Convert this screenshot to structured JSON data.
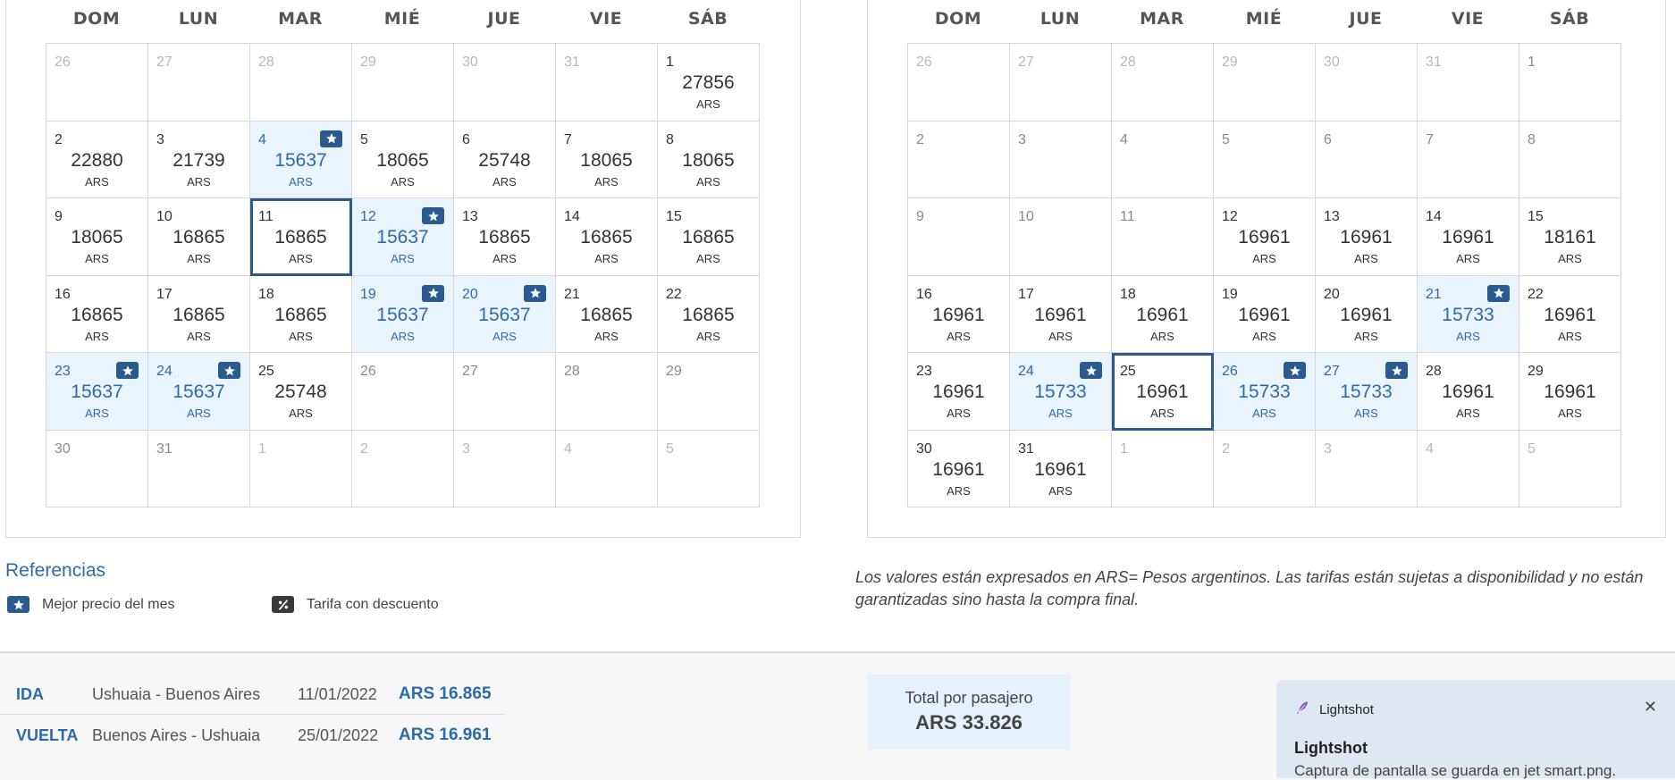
{
  "weekdays": [
    "DOM",
    "LUN",
    "MAR",
    "MIÉ",
    "JUE",
    "VIE",
    "SÁB"
  ],
  "calendars": [
    {
      "id": "ida",
      "days": [
        {
          "day": "26",
          "other": true
        },
        {
          "day": "27",
          "other": true
        },
        {
          "day": "28",
          "other": true
        },
        {
          "day": "29",
          "other": true
        },
        {
          "day": "30",
          "other": true
        },
        {
          "day": "31",
          "other": true
        },
        {
          "day": "1",
          "price": "27856",
          "cur": "ARS"
        },
        {
          "day": "2",
          "price": "22880",
          "cur": "ARS"
        },
        {
          "day": "3",
          "price": "21739",
          "cur": "ARS"
        },
        {
          "day": "4",
          "price": "15637",
          "cur": "ARS",
          "best": true
        },
        {
          "day": "5",
          "price": "18065",
          "cur": "ARS"
        },
        {
          "day": "6",
          "price": "25748",
          "cur": "ARS"
        },
        {
          "day": "7",
          "price": "18065",
          "cur": "ARS"
        },
        {
          "day": "8",
          "price": "18065",
          "cur": "ARS"
        },
        {
          "day": "9",
          "price": "18065",
          "cur": "ARS"
        },
        {
          "day": "10",
          "price": "16865",
          "cur": "ARS"
        },
        {
          "day": "11",
          "price": "16865",
          "cur": "ARS",
          "selected": true
        },
        {
          "day": "12",
          "price": "15637",
          "cur": "ARS",
          "best": true
        },
        {
          "day": "13",
          "price": "16865",
          "cur": "ARS"
        },
        {
          "day": "14",
          "price": "16865",
          "cur": "ARS"
        },
        {
          "day": "15",
          "price": "16865",
          "cur": "ARS"
        },
        {
          "day": "16",
          "price": "16865",
          "cur": "ARS"
        },
        {
          "day": "17",
          "price": "16865",
          "cur": "ARS"
        },
        {
          "day": "18",
          "price": "16865",
          "cur": "ARS"
        },
        {
          "day": "19",
          "price": "15637",
          "cur": "ARS",
          "best": true
        },
        {
          "day": "20",
          "price": "15637",
          "cur": "ARS",
          "best": true
        },
        {
          "day": "21",
          "price": "16865",
          "cur": "ARS"
        },
        {
          "day": "22",
          "price": "16865",
          "cur": "ARS"
        },
        {
          "day": "23",
          "price": "15637",
          "cur": "ARS",
          "best": true
        },
        {
          "day": "24",
          "price": "15637",
          "cur": "ARS",
          "best": true
        },
        {
          "day": "25",
          "price": "25748",
          "cur": "ARS"
        },
        {
          "day": "26",
          "noprice": true
        },
        {
          "day": "27",
          "noprice": true
        },
        {
          "day": "28",
          "noprice": true
        },
        {
          "day": "29",
          "noprice": true
        },
        {
          "day": "30",
          "noprice": true
        },
        {
          "day": "31",
          "noprice": true
        },
        {
          "day": "1",
          "other": true
        },
        {
          "day": "2",
          "other": true
        },
        {
          "day": "3",
          "other": true
        },
        {
          "day": "4",
          "other": true
        },
        {
          "day": "5",
          "other": true
        }
      ]
    },
    {
      "id": "vuelta",
      "days": [
        {
          "day": "26",
          "other": true
        },
        {
          "day": "27",
          "other": true
        },
        {
          "day": "28",
          "other": true
        },
        {
          "day": "29",
          "other": true
        },
        {
          "day": "30",
          "other": true
        },
        {
          "day": "31",
          "other": true
        },
        {
          "day": "1",
          "noprice": true
        },
        {
          "day": "2",
          "noprice": true
        },
        {
          "day": "3",
          "noprice": true
        },
        {
          "day": "4",
          "noprice": true
        },
        {
          "day": "5",
          "noprice": true
        },
        {
          "day": "6",
          "noprice": true
        },
        {
          "day": "7",
          "noprice": true
        },
        {
          "day": "8",
          "noprice": true
        },
        {
          "day": "9",
          "noprice": true
        },
        {
          "day": "10",
          "noprice": true
        },
        {
          "day": "11",
          "noprice": true
        },
        {
          "day": "12",
          "price": "16961",
          "cur": "ARS"
        },
        {
          "day": "13",
          "price": "16961",
          "cur": "ARS"
        },
        {
          "day": "14",
          "price": "16961",
          "cur": "ARS"
        },
        {
          "day": "15",
          "price": "18161",
          "cur": "ARS"
        },
        {
          "day": "16",
          "price": "16961",
          "cur": "ARS"
        },
        {
          "day": "17",
          "price": "16961",
          "cur": "ARS"
        },
        {
          "day": "18",
          "price": "16961",
          "cur": "ARS"
        },
        {
          "day": "19",
          "price": "16961",
          "cur": "ARS"
        },
        {
          "day": "20",
          "price": "16961",
          "cur": "ARS"
        },
        {
          "day": "21",
          "price": "15733",
          "cur": "ARS",
          "best": true
        },
        {
          "day": "22",
          "price": "16961",
          "cur": "ARS"
        },
        {
          "day": "23",
          "price": "16961",
          "cur": "ARS"
        },
        {
          "day": "24",
          "price": "15733",
          "cur": "ARS",
          "best": true
        },
        {
          "day": "25",
          "price": "16961",
          "cur": "ARS",
          "selected": true
        },
        {
          "day": "26",
          "price": "15733",
          "cur": "ARS",
          "best": true
        },
        {
          "day": "27",
          "price": "15733",
          "cur": "ARS",
          "best": true
        },
        {
          "day": "28",
          "price": "16961",
          "cur": "ARS"
        },
        {
          "day": "29",
          "price": "16961",
          "cur": "ARS"
        },
        {
          "day": "30",
          "price": "16961",
          "cur": "ARS"
        },
        {
          "day": "31",
          "price": "16961",
          "cur": "ARS"
        },
        {
          "day": "1",
          "other": true
        },
        {
          "day": "2",
          "other": true
        },
        {
          "day": "3",
          "other": true
        },
        {
          "day": "4",
          "other": true
        },
        {
          "day": "5",
          "other": true
        }
      ]
    }
  ],
  "references": {
    "title": "Referencias",
    "best_price": "Mejor precio del mes",
    "discount": "Tarifa con descuento"
  },
  "disclaimer": "Los valores están expresados en ARS= Pesos argentinos. Las tarifas están sujetas a disponibilidad y no están garantizadas sino hasta la compra final.",
  "summary": {
    "ida": {
      "label": "IDA",
      "route": "Ushuaia - Buenos Aires",
      "date": "11/01/2022",
      "price": "ARS 16.865"
    },
    "vuelta": {
      "label": "VUELTA",
      "route": "Buenos Aires - Ushuaia",
      "date": "25/01/2022",
      "price": "ARS 16.961"
    },
    "total_label": "Total por pasajero",
    "total_value": "ARS 33.826"
  },
  "toast": {
    "app": "Lightshot",
    "title": "Lightshot",
    "message": "Captura de pantalla se guarda en jet smart.png."
  },
  "colors": {
    "accent": "#2d6aaa",
    "badge": "#2a5a8e",
    "best_bg": "#eaf4fd",
    "toast_bg": "#dfe7f0"
  }
}
